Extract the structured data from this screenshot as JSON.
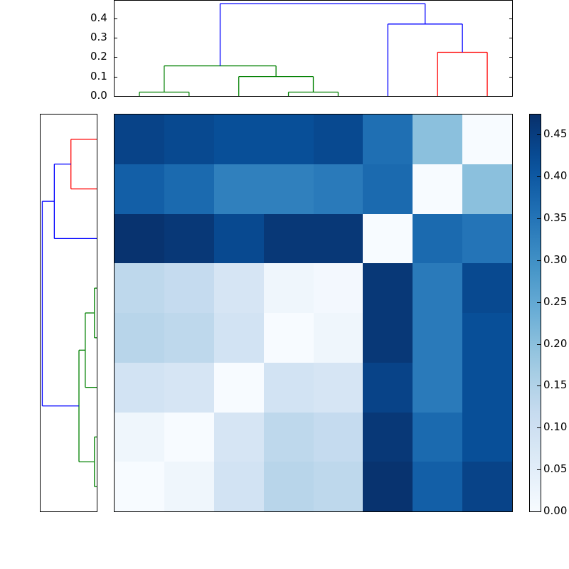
{
  "chart_data": [
    {
      "type": "heatmap",
      "title": "",
      "xlabel": "",
      "ylabel": "",
      "rows": 8,
      "cols": 8,
      "values": [
        [
          0.44,
          0.43,
          0.42,
          0.42,
          0.43,
          0.36,
          0.2,
          0.0
        ],
        [
          0.39,
          0.37,
          0.33,
          0.33,
          0.34,
          0.37,
          0.0,
          0.2
        ],
        [
          0.47,
          0.46,
          0.43,
          0.46,
          0.46,
          0.0,
          0.37,
          0.35
        ],
        [
          0.13,
          0.12,
          0.08,
          0.02,
          0.01,
          0.46,
          0.34,
          0.43
        ],
        [
          0.14,
          0.13,
          0.09,
          0.0,
          0.02,
          0.46,
          0.34,
          0.42
        ],
        [
          0.09,
          0.08,
          0.0,
          0.09,
          0.08,
          0.44,
          0.34,
          0.42
        ],
        [
          0.02,
          0.0,
          0.08,
          0.13,
          0.12,
          0.46,
          0.37,
          0.42
        ],
        [
          0.0,
          0.02,
          0.09,
          0.14,
          0.13,
          0.47,
          0.39,
          0.44
        ]
      ],
      "colormap": "Blues",
      "vmin": 0.0,
      "vmax": 0.475,
      "x_ticks": [],
      "y_ticks": [],
      "colorbar": {
        "ticks": [
          0.0,
          0.05,
          0.1,
          0.15,
          0.2,
          0.25,
          0.3,
          0.35,
          0.4,
          0.45
        ],
        "tick_labels": [
          "0.00",
          "0.05",
          "0.10",
          "0.15",
          "0.20",
          "0.25",
          "0.30",
          "0.35",
          "0.40",
          "0.45"
        ],
        "position": "right"
      }
    },
    {
      "type": "dendrogram",
      "orientation": "top",
      "ylim": [
        0.0,
        0.49
      ],
      "y_ticks": [
        0.0,
        0.1,
        0.2,
        0.3,
        0.4
      ],
      "y_tick_labels": [
        "0.0",
        "0.1",
        "0.2",
        "0.3",
        "0.4"
      ],
      "leaf_count": 8,
      "links": [
        {
          "left": 0,
          "right": 1,
          "height": 0.02,
          "color": "green"
        },
        {
          "left": 3,
          "right": 4,
          "height": 0.02,
          "color": "green"
        },
        {
          "left": 2,
          "right": "3-4",
          "height": 0.1,
          "color": "green"
        },
        {
          "left": "0-1",
          "right": "2-4",
          "height": 0.155,
          "color": "green"
        },
        {
          "left": 6,
          "right": 7,
          "height": 0.225,
          "color": "red"
        },
        {
          "left": 5,
          "right": "6-7",
          "height": 0.37,
          "color": "blue"
        },
        {
          "left": "0-4",
          "right": "5-7",
          "height": 0.475,
          "color": "blue"
        }
      ]
    },
    {
      "type": "dendrogram",
      "orientation": "left",
      "leaf_count": 8,
      "links": [
        {
          "top": 0,
          "bottom": 1,
          "height": 0.225,
          "color": "red"
        },
        {
          "top": "0-1",
          "bottom": 2,
          "height": 0.37,
          "color": "blue"
        },
        {
          "top": 3,
          "bottom": 4,
          "height": 0.02,
          "color": "green"
        },
        {
          "top": "3-4",
          "bottom": 5,
          "height": 0.1,
          "color": "green"
        },
        {
          "top": 6,
          "bottom": 7,
          "height": 0.02,
          "color": "green"
        },
        {
          "top": "3-5",
          "bottom": "6-7",
          "height": 0.155,
          "color": "green"
        },
        {
          "top": "0-2",
          "bottom": "3-7",
          "height": 0.475,
          "color": "blue"
        }
      ]
    }
  ],
  "colors": {
    "green": "#008000",
    "red": "#ff0000",
    "blue": "#0000ff",
    "axis": "#000000"
  }
}
